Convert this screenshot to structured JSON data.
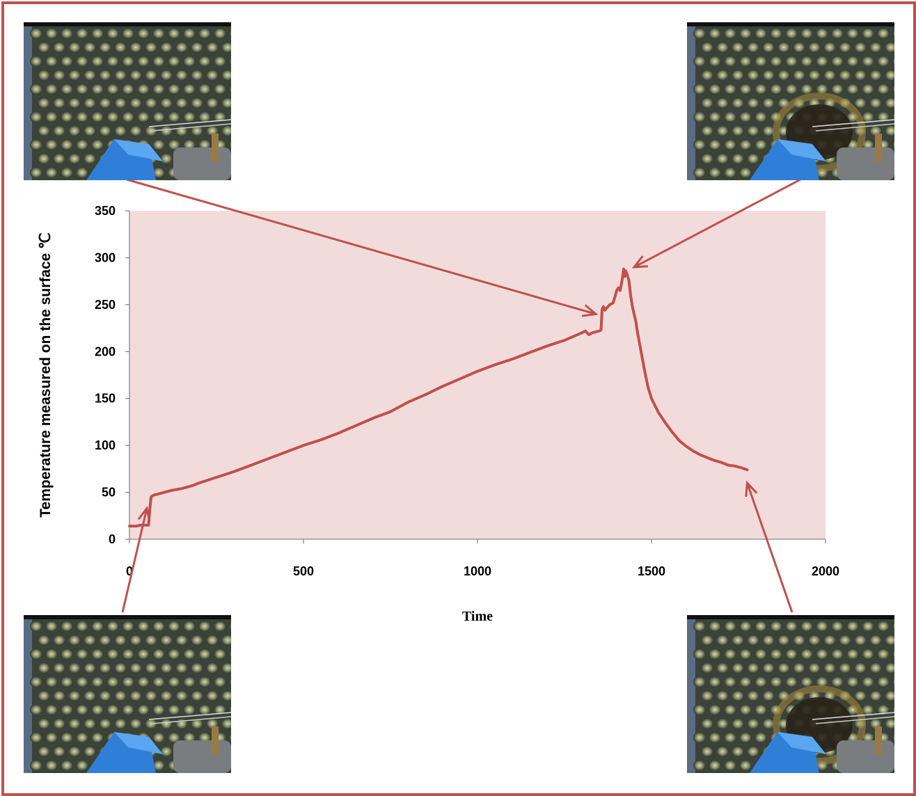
{
  "chart_data": {
    "type": "line",
    "title": "",
    "xlabel": "Time",
    "ylabel": "Temperature measured on the surface ℃",
    "xlim": [
      0,
      2000
    ],
    "ylim": [
      0,
      350
    ],
    "x_ticks": [
      0,
      500,
      1000,
      1500,
      2000
    ],
    "y_ticks": [
      0,
      50,
      100,
      150,
      200,
      250,
      300,
      350
    ],
    "grid": false,
    "legend": "none",
    "plot_area_color": "#f2dcdb",
    "line_color": "#c0504d",
    "series": [
      {
        "x": [
          0,
          10,
          20,
          30,
          40,
          50,
          55,
          58,
          62,
          65,
          70,
          80,
          100,
          120,
          150,
          180,
          200,
          250,
          300,
          350,
          400,
          450,
          500,
          550,
          600,
          650,
          700,
          750,
          800,
          850,
          900,
          950,
          1000,
          1050,
          1100,
          1150,
          1200,
          1250,
          1300,
          1310,
          1320,
          1330,
          1340,
          1350,
          1355,
          1358,
          1362,
          1366,
          1370,
          1375,
          1380,
          1390,
          1400,
          1405,
          1410,
          1415,
          1420,
          1423,
          1426,
          1430,
          1435,
          1440,
          1445,
          1450,
          1455,
          1460,
          1470,
          1480,
          1490,
          1500,
          1520,
          1540,
          1560,
          1580,
          1600,
          1620,
          1640,
          1660,
          1680,
          1700,
          1720,
          1740,
          1760,
          1775
        ],
        "y": [
          14,
          14,
          14,
          15,
          15,
          15,
          15,
          30,
          45,
          46,
          47,
          48,
          50,
          52,
          54,
          57,
          60,
          66,
          72,
          79,
          86,
          93,
          100,
          106,
          113,
          121,
          129,
          136,
          146,
          154,
          163,
          171,
          179,
          186,
          192,
          199,
          206,
          212,
          220,
          222,
          218,
          220,
          221,
          222,
          223,
          245,
          248,
          244,
          246,
          248,
          250,
          252,
          265,
          268,
          265,
          275,
          288,
          280,
          286,
          282,
          276,
          260,
          248,
          240,
          232,
          220,
          200,
          180,
          162,
          150,
          135,
          124,
          114,
          105,
          99,
          94,
          90,
          87,
          84,
          82,
          79,
          78,
          76,
          74
        ]
      }
    ]
  },
  "annotations": {
    "arrow_color": "#c0504d",
    "arrows": [
      {
        "from_thumb": "top-left",
        "to": [
          1340,
          240
        ]
      },
      {
        "from_thumb": "top-right",
        "to": [
          1450,
          290
        ]
      },
      {
        "from_thumb": "bottom-left",
        "to": [
          50,
          33
        ]
      },
      {
        "from_thumb": "bottom-right",
        "to": [
          1775,
          60
        ]
      }
    ]
  }
}
